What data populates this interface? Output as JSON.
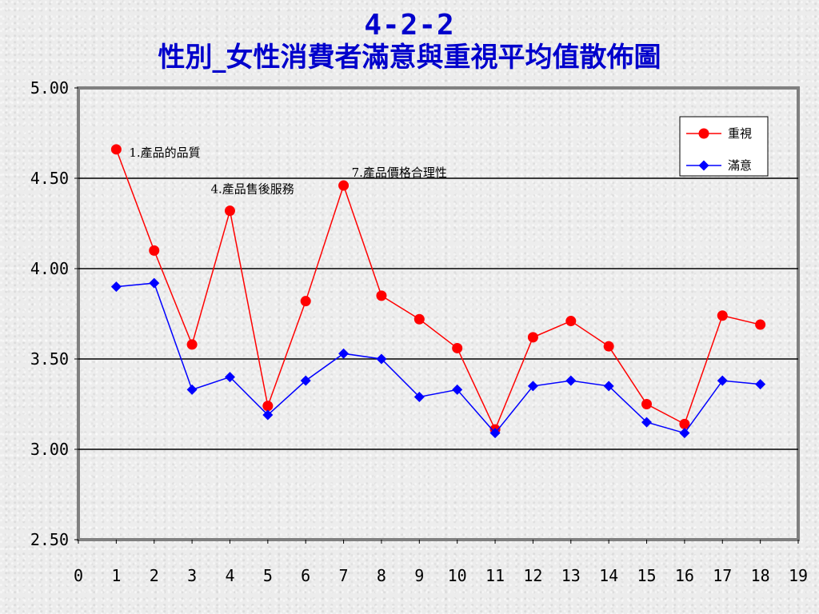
{
  "title": {
    "line1": "4-2-2",
    "line2": "性別_女性消費者滿意與重視平均值散佈圖"
  },
  "chart_data": {
    "type": "line",
    "x": [
      1,
      2,
      3,
      4,
      5,
      6,
      7,
      8,
      9,
      10,
      11,
      12,
      13,
      14,
      15,
      16,
      17,
      18
    ],
    "xlim": [
      0,
      19
    ],
    "xticks": [
      "0",
      "1",
      "2",
      "3",
      "4",
      "5",
      "6",
      "7",
      "8",
      "9",
      "10",
      "11",
      "12",
      "13",
      "14",
      "15",
      "16",
      "17",
      "18",
      "19"
    ],
    "ylim": [
      2.5,
      5.0
    ],
    "yticks": [
      "2.50",
      "3.00",
      "3.50",
      "4.00",
      "4.50",
      "5.00"
    ],
    "grid": "horizontal",
    "legend_position": "top-right",
    "series": [
      {
        "name": "重視",
        "color": "#ff0000",
        "marker": "circle",
        "values": [
          4.66,
          4.1,
          3.58,
          4.32,
          3.24,
          3.82,
          4.46,
          3.85,
          3.72,
          3.56,
          3.11,
          3.62,
          3.71,
          3.57,
          3.25,
          3.14,
          3.74,
          3.69
        ]
      },
      {
        "name": "滿意",
        "color": "#0000ff",
        "marker": "diamond",
        "values": [
          3.9,
          3.92,
          3.33,
          3.4,
          3.19,
          3.38,
          3.53,
          3.5,
          3.29,
          3.33,
          3.09,
          3.35,
          3.38,
          3.35,
          3.15,
          3.09,
          3.38,
          3.36
        ]
      }
    ],
    "annotations": [
      {
        "x": 1,
        "y": 4.66,
        "text": "1.產品的品質"
      },
      {
        "x": 4,
        "y": 4.32,
        "text": "4.產品售後服務"
      },
      {
        "x": 7,
        "y": 4.46,
        "text": "7.產品價格合理性"
      }
    ]
  }
}
